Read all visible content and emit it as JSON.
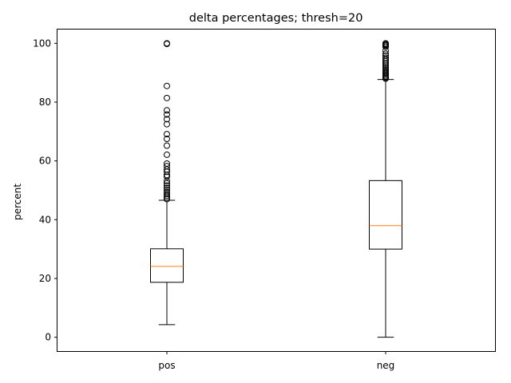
{
  "chart_data": {
    "type": "boxplot",
    "title": "delta percentages; thresh=20",
    "xlabel": "",
    "ylabel": "percent",
    "ylim": [
      -4.7,
      104.7
    ],
    "yticks": [
      0,
      20,
      40,
      60,
      80,
      100
    ],
    "grid": false,
    "categories": [
      "pos",
      "neg"
    ],
    "boxes": [
      {
        "label": "pos",
        "whisker_low": 4.3,
        "q1": 18.7,
        "median": 24.1,
        "q3": 30.1,
        "whisker_high": 46.6,
        "outliers": [
          100,
          99.8,
          85.5,
          81.4,
          77.2,
          75.8,
          74.2,
          72.5,
          69.1,
          67.5,
          65.2,
          62.1,
          59.1,
          58.2,
          57.1,
          56.3,
          55.2,
          54.6,
          53.2,
          52.4,
          51.6,
          50.8,
          50.1,
          49.4,
          48.7,
          48.1,
          47.5,
          47.0
        ]
      },
      {
        "label": "neg",
        "whisker_low": 0,
        "q1": 30.0,
        "median": 38.0,
        "q3": 53.3,
        "whisker_high": 87.7,
        "outliers": [
          100,
          99.8,
          99.5,
          99.2,
          98.8,
          97.5,
          96.5,
          95.8,
          95.1,
          94.5,
          93.9,
          93.3,
          92.7,
          92.1,
          91.6,
          91.1,
          90.6,
          90.1,
          89.6,
          89.1,
          88.7,
          88.3,
          88.0
        ]
      }
    ],
    "colors": {
      "box": "#000000",
      "median": "#ff7f0e",
      "outlier": "#000000"
    }
  }
}
